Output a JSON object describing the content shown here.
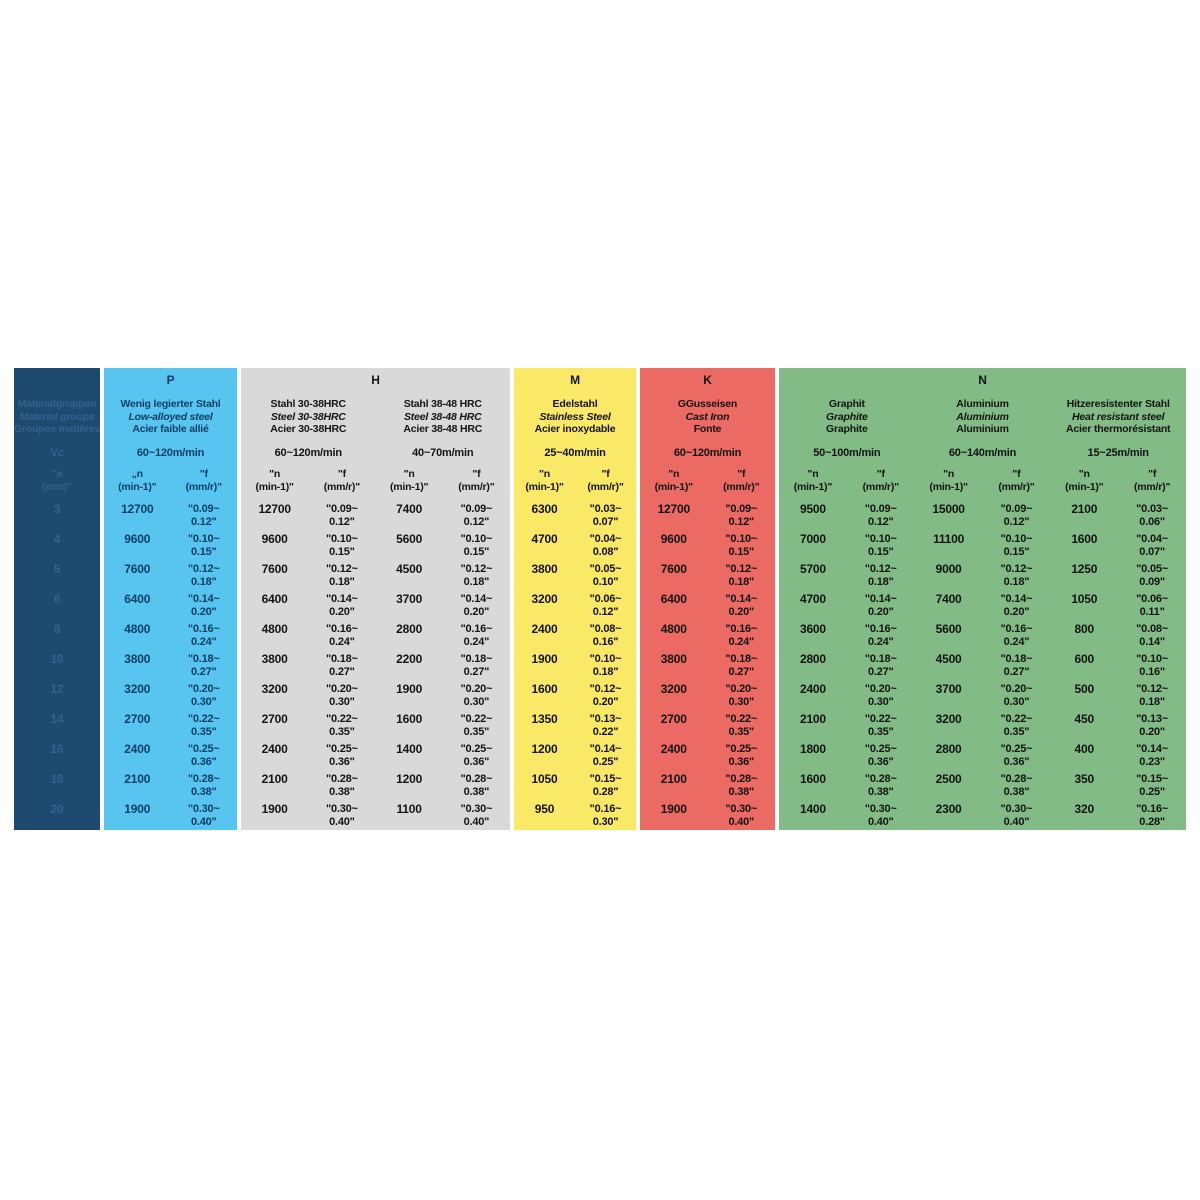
{
  "page": {
    "background": "#ffffff"
  },
  "table": {
    "left_header": {
      "bg": "#1d4a6e",
      "text_color": "#31618d",
      "title_lines": [
        "Materialgruppen",
        "Material groups",
        "Groupes matières"
      ],
      "vc_label": "Vc",
      "dia_header_lines": [
        "\"ø",
        "(mm)\""
      ],
      "diameters": [
        "3",
        "4",
        "5",
        "6",
        "8",
        "10",
        "12",
        "14",
        "16",
        "18",
        "20"
      ]
    },
    "groups": [
      {
        "letter": "P",
        "bg": "#58c5f1",
        "text_color": "#0d3f66",
        "letter_color": "#0d3f66",
        "materials": [
          {
            "name_lines": [
              "Wenig legierter Stahl",
              "Low-alloyed steel",
              "Acier faible allié"
            ],
            "vc": "60~120m/min",
            "n_head_lines": [
              "„n",
              "(min-1)\""
            ],
            "f_head_lines": [
              "\"f",
              "(mm/r)\""
            ],
            "rows": [
              [
                "12700",
                "\"0.09~",
                "0.12\""
              ],
              [
                "9600",
                "\"0.10~",
                "0.15\""
              ],
              [
                "7600",
                "\"0.12~",
                "0.18\""
              ],
              [
                "6400",
                "\"0.14~",
                "0.20\""
              ],
              [
                "4800",
                "\"0.16~",
                "0.24\""
              ],
              [
                "3800",
                "\"0.18~",
                "0.27\""
              ],
              [
                "3200",
                "\"0.20~",
                "0.30\""
              ],
              [
                "2700",
                "\"0.22~",
                "0.35\""
              ],
              [
                "2400",
                "\"0.25~",
                "0.36\""
              ],
              [
                "2100",
                "\"0.28~",
                "0.38\""
              ],
              [
                "1900",
                "\"0.30~",
                "0.40\""
              ]
            ]
          }
        ]
      },
      {
        "letter": "H",
        "bg": "#d9d9d9",
        "text_color": "#141414",
        "letter_color": "#141414",
        "materials": [
          {
            "name_lines": [
              "Stahl 30-38HRC",
              "Steel 30-38HRC",
              "Acier 30-38HRC"
            ],
            "vc": "60~120m/min",
            "n_head_lines": [
              "\"n",
              "(min-1)\""
            ],
            "f_head_lines": [
              "\"f",
              "(mm/r)\""
            ],
            "rows": [
              [
                "12700",
                "\"0.09~",
                "0.12\""
              ],
              [
                "9600",
                "\"0.10~",
                "0.15\""
              ],
              [
                "7600",
                "\"0.12~",
                "0.18\""
              ],
              [
                "6400",
                "\"0.14~",
                "0.20\""
              ],
              [
                "4800",
                "\"0.16~",
                "0.24\""
              ],
              [
                "3800",
                "\"0.18~",
                "0.27\""
              ],
              [
                "3200",
                "\"0.20~",
                "0.30\""
              ],
              [
                "2700",
                "\"0.22~",
                "0.35\""
              ],
              [
                "2400",
                "\"0.25~",
                "0.36\""
              ],
              [
                "2100",
                "\"0.28~",
                "0.38\""
              ],
              [
                "1900",
                "\"0.30~",
                "0.40\""
              ]
            ]
          },
          {
            "name_lines": [
              "Stahl 38-48 HRC",
              "Steel 38-48 HRC",
              "Acier 38-48 HRC"
            ],
            "vc": "40~70m/min",
            "n_head_lines": [
              "\"n",
              "(min-1)\""
            ],
            "f_head_lines": [
              "\"f",
              "(mm/r)\""
            ],
            "rows": [
              [
                "7400",
                "\"0.09~",
                "0.12\""
              ],
              [
                "5600",
                "\"0.10~",
                "0.15\""
              ],
              [
                "4500",
                "\"0.12~",
                "0.18\""
              ],
              [
                "3700",
                "\"0.14~",
                "0.20\""
              ],
              [
                "2800",
                "\"0.16~",
                "0.24\""
              ],
              [
                "2200",
                "\"0.18~",
                "0.27\""
              ],
              [
                "1900",
                "\"0.20~",
                "0.30\""
              ],
              [
                "1600",
                "\"0.22~",
                "0.35\""
              ],
              [
                "1400",
                "\"0.25~",
                "0.36\""
              ],
              [
                "1200",
                "\"0.28~",
                "0.38\""
              ],
              [
                "1100",
                "\"0.30~",
                "0.40\""
              ]
            ]
          }
        ]
      },
      {
        "letter": "M",
        "bg": "#f9e967",
        "text_color": "#141414",
        "letter_color": "#141414",
        "materials": [
          {
            "name_lines": [
              "Edelstahl",
              "Stainless Steel",
              "Acier inoxydable"
            ],
            "vc": "25~40m/min",
            "n_head_lines": [
              "\"n",
              "(min-1)\""
            ],
            "f_head_lines": [
              "\"f",
              "(mm/r)\""
            ],
            "rows": [
              [
                "6300",
                "\"0.03~",
                "0.07\""
              ],
              [
                "4700",
                "\"0.04~",
                "0.08\""
              ],
              [
                "3800",
                "\"0.05~",
                "0.10\""
              ],
              [
                "3200",
                "\"0.06~",
                "0.12\""
              ],
              [
                "2400",
                "\"0.08~",
                "0.16\""
              ],
              [
                "1900",
                "\"0.10~",
                "0.18\""
              ],
              [
                "1600",
                "\"0.12~",
                "0.20\""
              ],
              [
                "1350",
                "\"0.13~",
                "0.22\""
              ],
              [
                "1200",
                "\"0.14~",
                "0.25\""
              ],
              [
                "1050",
                "\"0.15~",
                "0.28\""
              ],
              [
                "950",
                "\"0.16~",
                "0.30\""
              ]
            ]
          }
        ]
      },
      {
        "letter": "K",
        "bg": "#ec6a64",
        "text_color": "#141414",
        "letter_color": "#141414",
        "materials": [
          {
            "name_lines": [
              "GGusseisen",
              "Cast Iron",
              "Fonte"
            ],
            "vc": "60~120m/min",
            "n_head_lines": [
              "\"n",
              "(min-1)\""
            ],
            "f_head_lines": [
              "\"f",
              "(mm/r)\""
            ],
            "rows": [
              [
                "12700",
                "\"0.09~",
                "0.12\""
              ],
              [
                "9600",
                "\"0.10~",
                "0.15\""
              ],
              [
                "7600",
                "\"0.12~",
                "0.18\""
              ],
              [
                "6400",
                "\"0.14~",
                "0.20\""
              ],
              [
                "4800",
                "\"0.16~",
                "0.24\""
              ],
              [
                "3800",
                "\"0.18~",
                "0.27\""
              ],
              [
                "3200",
                "\"0.20~",
                "0.30\""
              ],
              [
                "2700",
                "\"0.22~",
                "0.35\""
              ],
              [
                "2400",
                "\"0.25~",
                "0.36\""
              ],
              [
                "2100",
                "\"0.28~",
                "0.38\""
              ],
              [
                "1900",
                "\"0.30~",
                "0.40\""
              ]
            ]
          }
        ]
      },
      {
        "letter": "N",
        "bg": "#82bb86",
        "text_color": "#141414",
        "letter_color": "#141414",
        "materials": [
          {
            "name_lines": [
              "Graphit",
              "Graphite",
              "Graphite"
            ],
            "vc": "50~100m/min",
            "n_head_lines": [
              "\"n",
              "(min-1)\""
            ],
            "f_head_lines": [
              "\"f",
              "(mm/r)\""
            ],
            "rows": [
              [
                "9500",
                "\"0.09~",
                "0.12\""
              ],
              [
                "7000",
                "\"0.10~",
                "0.15\""
              ],
              [
                "5700",
                "\"0.12~",
                "0.18\""
              ],
              [
                "4700",
                "\"0.14~",
                "0.20\""
              ],
              [
                "3600",
                "\"0.16~",
                "0.24\""
              ],
              [
                "2800",
                "\"0.18~",
                "0.27\""
              ],
              [
                "2400",
                "\"0.20~",
                "0.30\""
              ],
              [
                "2100",
                "\"0.22~",
                "0.35\""
              ],
              [
                "1800",
                "\"0.25~",
                "0.36\""
              ],
              [
                "1600",
                "\"0.28~",
                "0.38\""
              ],
              [
                "1400",
                "\"0.30~",
                "0.40\""
              ]
            ]
          },
          {
            "name_lines": [
              "Aluminium",
              "Aluminium",
              "Aluminium"
            ],
            "vc": "60~140m/min",
            "n_head_lines": [
              "\"n",
              "(min-1)\""
            ],
            "f_head_lines": [
              "\"f",
              "(mm/r)\""
            ],
            "rows": [
              [
                "15000",
                "\"0.09~",
                "0.12\""
              ],
              [
                "11100",
                "\"0.10~",
                "0.15\""
              ],
              [
                "9000",
                "\"0.12~",
                "0.18\""
              ],
              [
                "7400",
                "\"0.14~",
                "0.20\""
              ],
              [
                "5600",
                "\"0.16~",
                "0.24\""
              ],
              [
                "4500",
                "\"0.18~",
                "0.27\""
              ],
              [
                "3700",
                "\"0.20~",
                "0.30\""
              ],
              [
                "3200",
                "\"0.22~",
                "0.35\""
              ],
              [
                "2800",
                "\"0.25~",
                "0.36\""
              ],
              [
                "2500",
                "\"0.28~",
                "0.38\""
              ],
              [
                "2300",
                "\"0.30~",
                "0.40\""
              ]
            ]
          },
          {
            "name_lines": [
              "Hitzeresistenter Stahl",
              "Heat resistant steel",
              "Acier thermorésistant"
            ],
            "vc": "15~25m/min",
            "n_head_lines": [
              "\"n",
              "(min-1)\""
            ],
            "f_head_lines": [
              "\"f",
              "(mm/r)\""
            ],
            "rows": [
              [
                "2100",
                "\"0.03~",
                "0.06\""
              ],
              [
                "1600",
                "\"0.04~",
                "0.07\""
              ],
              [
                "1250",
                "\"0.05~",
                "0.09\""
              ],
              [
                "1050",
                "\"0.06~",
                "0.11\""
              ],
              [
                "800",
                "\"0.08~",
                "0.14\""
              ],
              [
                "600",
                "\"0.10~",
                "0.16\""
              ],
              [
                "500",
                "\"0.12~",
                "0.18\""
              ],
              [
                "450",
                "\"0.13~",
                "0.20\""
              ],
              [
                "400",
                "\"0.14~",
                "0.23\""
              ],
              [
                "350",
                "\"0.15~",
                "0.25\""
              ],
              [
                "320",
                "\"0.16~",
                "0.28\""
              ]
            ]
          }
        ]
      }
    ]
  }
}
